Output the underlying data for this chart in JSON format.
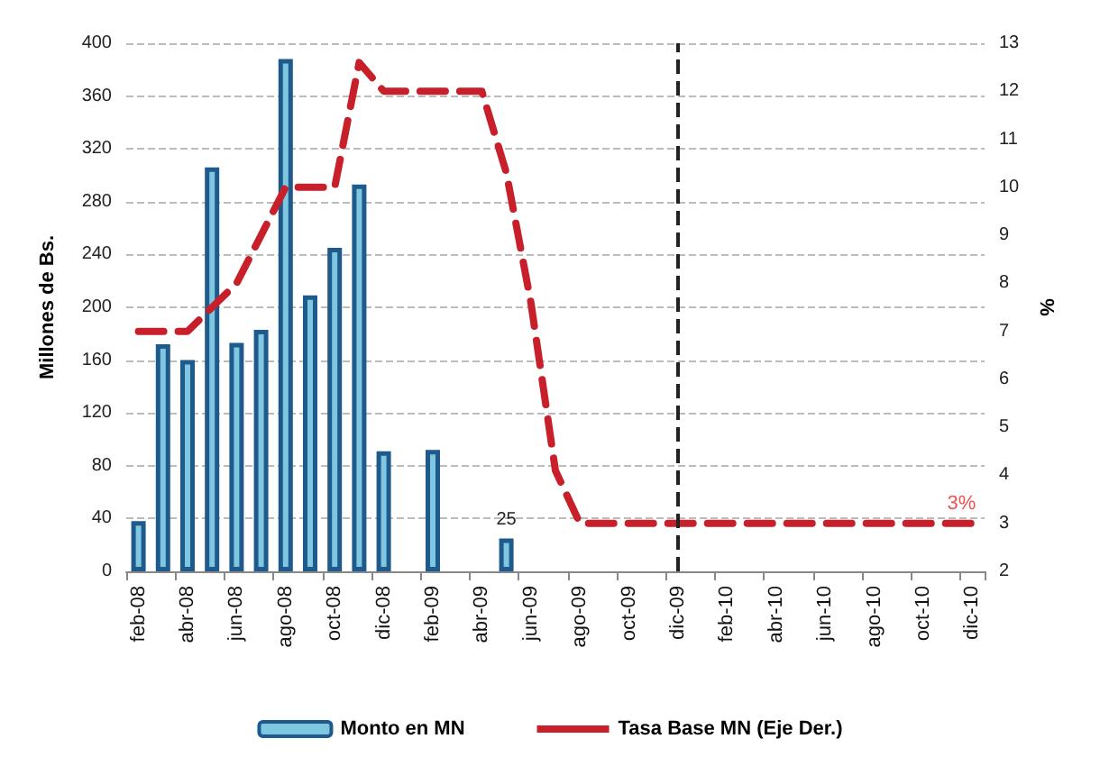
{
  "chart_data": {
    "type": "bar",
    "ylabel": "Millones de Bs.",
    "y2label": "%",
    "categories": [
      "feb-08",
      null,
      "abr-08",
      null,
      "jun-08",
      null,
      "ago-08",
      null,
      "oct-08",
      null,
      "dic-08",
      null,
      "feb-09",
      null,
      "abr-09",
      null,
      "jun-09",
      null,
      "ago-09",
      null,
      "oct-09",
      null,
      "dic-09",
      null,
      "feb-10",
      null,
      "abr-10",
      null,
      "jun-10",
      null,
      "ago-10",
      null,
      "oct-10",
      null,
      "dic-10"
    ],
    "series": [
      {
        "name": "Monto en MN",
        "color": "#1f5a8c",
        "values": [
          38,
          172,
          160,
          306,
          173,
          183,
          388,
          209,
          245,
          293,
          91,
          null,
          92,
          null,
          null,
          25,
          null,
          null,
          null,
          null,
          null,
          null,
          null,
          null,
          null,
          null,
          null,
          null,
          null,
          null,
          null,
          null,
          null,
          null,
          null
        ],
        "value_labels": [
          null,
          null,
          null,
          null,
          null,
          null,
          null,
          null,
          null,
          null,
          null,
          null,
          null,
          null,
          null,
          "25",
          null,
          null,
          null,
          null,
          null,
          null,
          null,
          null,
          null,
          null,
          null,
          null,
          null,
          null,
          null,
          null,
          null,
          null,
          null
        ]
      },
      {
        "name": "Tasa Base MN (Eje Der.)",
        "type": "line",
        "axis": "y2",
        "color": "#c8202a",
        "line_style": "dashed",
        "marker": "none",
        "values": [
          7,
          7,
          7,
          7.5,
          8,
          9,
          10,
          10,
          10,
          12.6,
          12,
          12,
          12,
          12,
          12,
          10.3,
          7.6,
          4.1,
          3,
          3,
          3,
          3,
          3,
          3,
          3,
          3,
          3,
          3,
          3,
          3,
          3,
          3,
          3,
          3,
          3
        ]
      }
    ],
    "ylim": [
      0,
      400
    ],
    "yticks": [
      0,
      40,
      80,
      120,
      160,
      200,
      240,
      280,
      320,
      360,
      400
    ],
    "y2lim": [
      2,
      13
    ],
    "y2ticks": [
      2,
      3,
      4,
      5,
      6,
      7,
      8,
      9,
      10,
      11,
      12,
      13
    ],
    "grid": "y",
    "legend": "bottom",
    "ref_lines": [
      {
        "axis": "x",
        "value": "dic-09",
        "color": "#222222",
        "line_style": "dashed"
      }
    ],
    "annotations": [
      "3%"
    ]
  }
}
